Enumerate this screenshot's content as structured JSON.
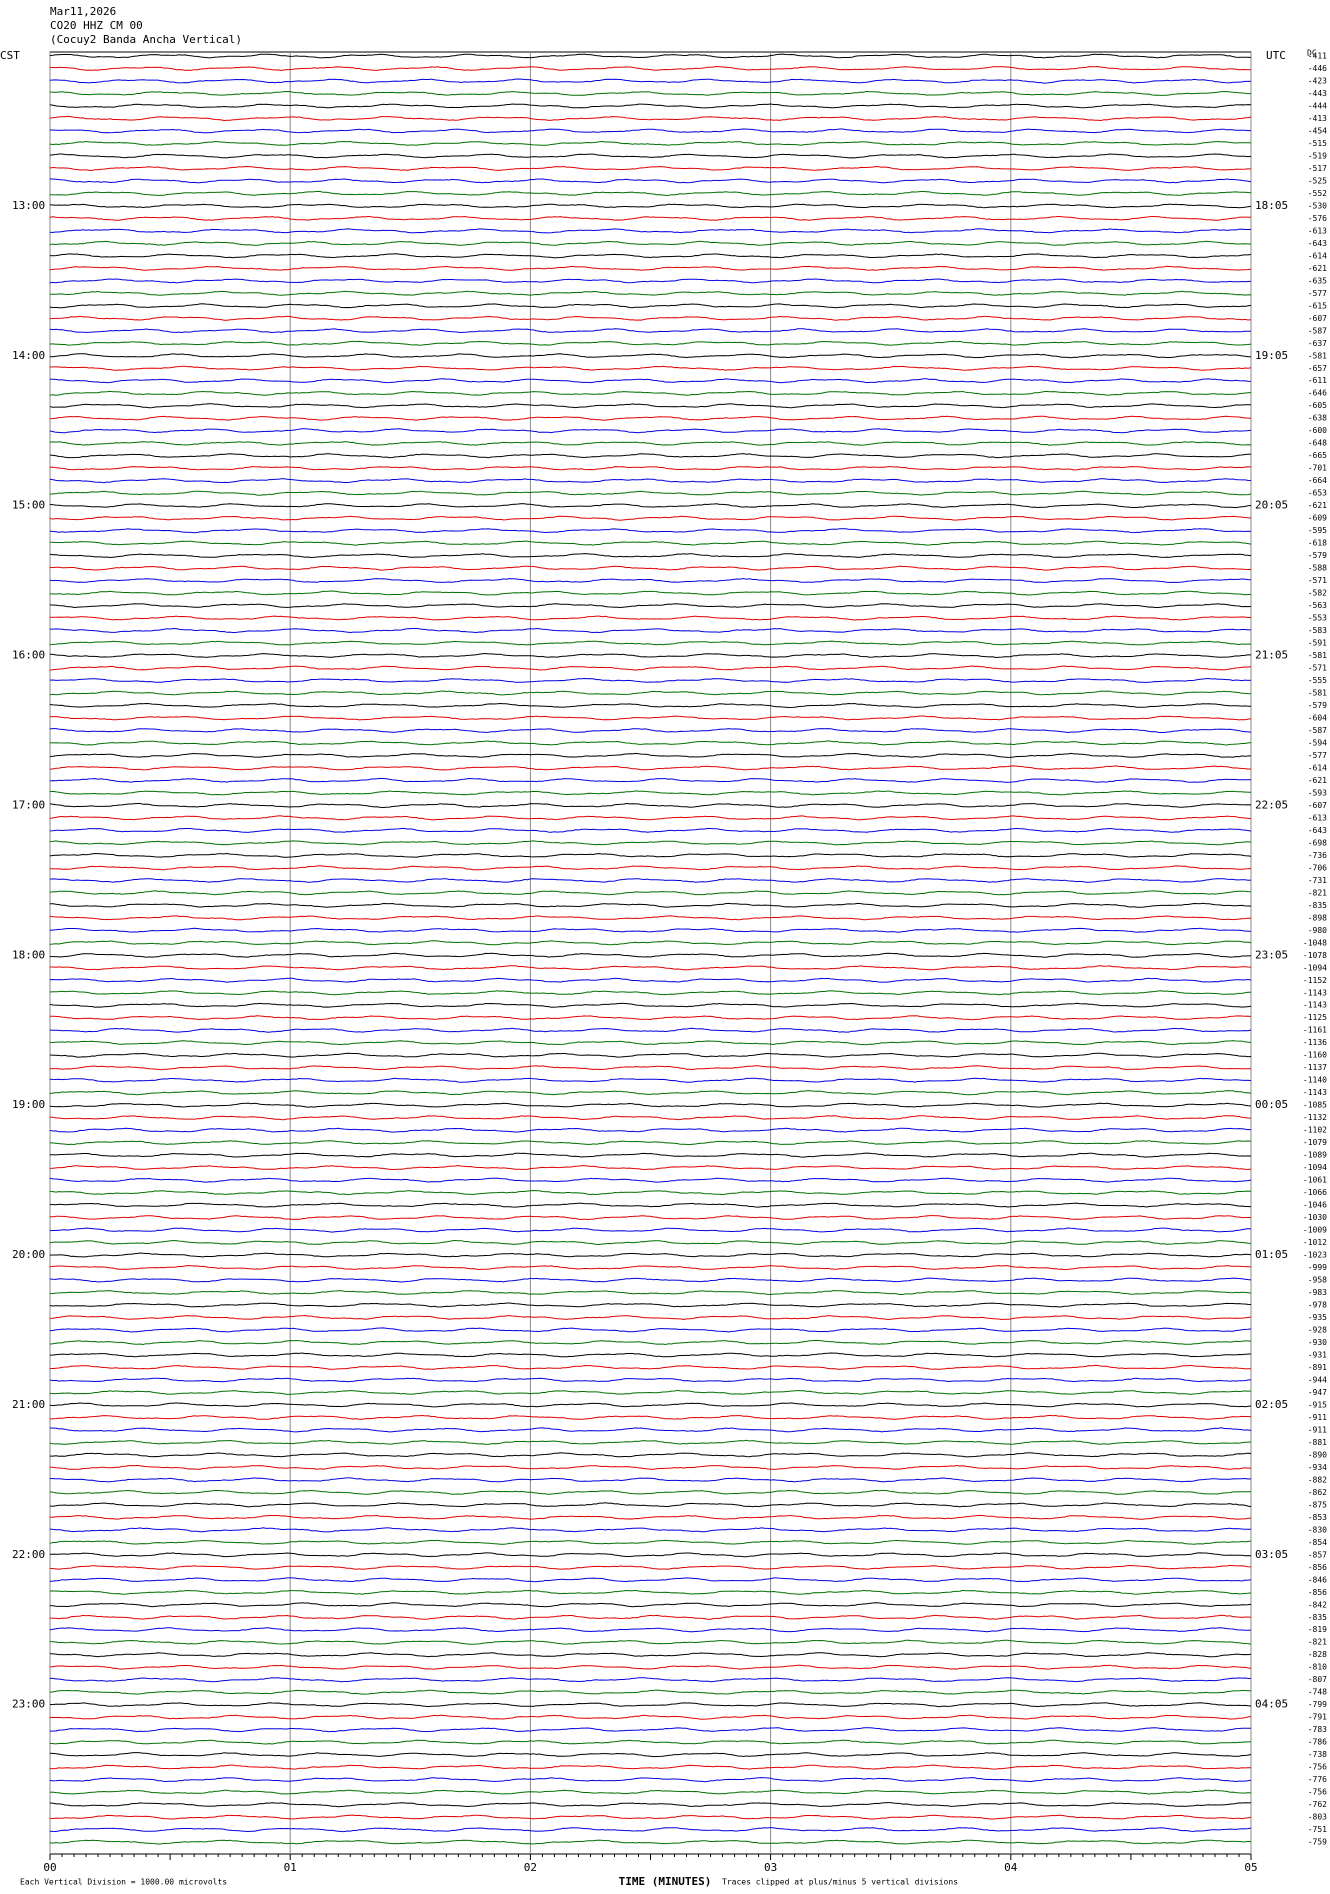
{
  "chart_data": {
    "type": "helicorder",
    "header": [
      "Mar11,2026",
      "CO20 HHZ CM 00",
      "(Cocuy2 Banda Ancha Vertical)"
    ],
    "left_zone": "CST",
    "right_zone": "UTC",
    "corner_label": "DC",
    "x_label": "TIME (MINUTES)",
    "footer_left": "Each Vertical Division = 1000.00 microvolts",
    "footer_right": "Traces clipped at plus/minus 5 vertical divisions",
    "xlim": [
      0,
      5
    ],
    "xticks": [
      {
        "value": 0,
        "label": "00"
      },
      {
        "value": 1,
        "label": "01"
      },
      {
        "value": 2,
        "label": "02"
      },
      {
        "value": 3,
        "label": "03"
      },
      {
        "value": 4,
        "label": "04"
      },
      {
        "value": 5,
        "label": "05"
      }
    ],
    "trace_colors": [
      "#000000",
      "#e00000",
      "#0000e0",
      "#007000"
    ],
    "hour_labels_cst": [
      "13:00",
      "14:00",
      "15:00",
      "16:00",
      "17:00",
      "18:00",
      "19:00",
      "20:00",
      "21:00",
      "22:00",
      "23:00"
    ],
    "hour_labels_utc": [
      "18:05",
      "19:05",
      "20:05",
      "21:05",
      "22:05",
      "23:05",
      "00:05",
      "01:05",
      "02:05",
      "03:05",
      "04:05"
    ],
    "trace_offsets": [
      -411,
      -446,
      -423,
      -443,
      -444,
      -413,
      -454,
      -515,
      -519,
      -517,
      -525,
      -552,
      -530,
      -576,
      -613,
      -643,
      -614,
      -621,
      -635,
      -577,
      -615,
      -607,
      -587,
      -637,
      -581,
      -657,
      -611,
      -646,
      -605,
      -638,
      -600,
      -648,
      -665,
      -701,
      -664,
      -653,
      -621,
      -609,
      -595,
      -618,
      -579,
      -588,
      -571,
      -582,
      -563,
      -553,
      -583,
      -591,
      -581,
      -571,
      -555,
      -581,
      -579,
      -604,
      -587,
      -594,
      -577,
      -614,
      -621,
      -593,
      -607,
      -613,
      -643,
      -698,
      -736,
      -706,
      -731,
      -821,
      -835,
      -898,
      -980,
      -1048,
      -1078,
      -1094,
      -1152,
      -1143,
      -1143,
      -1125,
      -1161,
      -1136,
      -1160,
      -1137,
      -1140,
      -1143,
      -1085,
      -1132,
      -1102,
      -1079,
      -1089,
      -1094,
      -1061,
      -1066,
      -1046,
      -1030,
      -1009,
      -1012,
      -1023,
      -999,
      -958,
      -983,
      -978,
      -935,
      -928,
      -930,
      -931,
      -891,
      -944,
      -947,
      -915,
      -911,
      -911,
      -881,
      -890,
      -934,
      -882,
      -862,
      -875,
      -853,
      -830,
      -854,
      -857,
      -856,
      -846,
      -856,
      -842,
      -835,
      -819,
      -821,
      -828,
      -810,
      -807,
      -748,
      -799,
      -791,
      -783,
      -786,
      -738,
      -756,
      -776,
      -756,
      -762,
      -803,
      -751,
      -759
    ]
  }
}
